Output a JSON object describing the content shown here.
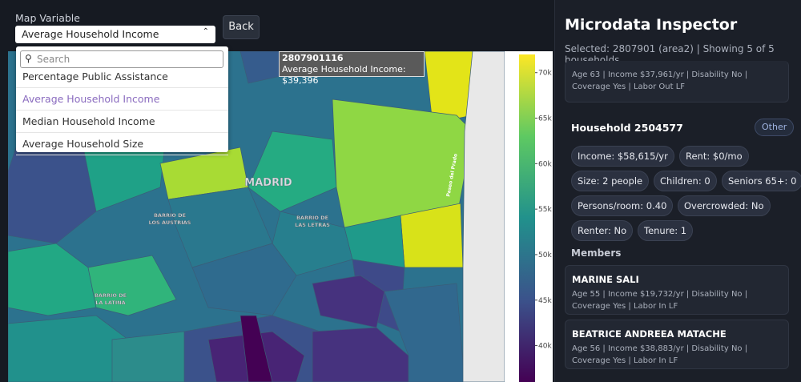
{
  "header": {
    "label": "Map Variable",
    "selected": "Average Household Income",
    "back": "Back"
  },
  "dropdown": {
    "search_placeholder": "Search",
    "options": [
      "Percentage Public Assistance",
      "Average Household Income",
      "Median Household Income",
      "Average Household Size"
    ]
  },
  "tooltip": {
    "id": "2807901116",
    "text": "Average Household Income: $39,396"
  },
  "map_labels": {
    "city": "MADRID",
    "austrias": [
      "BARRIO DE",
      "LOS AUSTRIAS"
    ],
    "letras": [
      "BARRIO DE",
      "LAS LETRAS"
    ],
    "latina": [
      "BARRIO DE",
      "LA LATINA"
    ],
    "street": "Paseo del Prado"
  },
  "colorbar": {
    "range": [
      36000,
      72000
    ],
    "ticks": [
      {
        "value": 70000,
        "label": "70k"
      },
      {
        "value": 65000,
        "label": "65k"
      },
      {
        "value": 60000,
        "label": "60k"
      },
      {
        "value": 55000,
        "label": "55k"
      },
      {
        "value": 50000,
        "label": "50k"
      },
      {
        "value": 45000,
        "label": "45k"
      },
      {
        "value": 40000,
        "label": "40k"
      }
    ]
  },
  "panel": {
    "title": "Microdata Inspector",
    "subtitle": "Selected: 2807901 (area2) | Showing 5 of 5 households",
    "prev_member": {
      "detail": "Age 63 | Income $37,961/yr | Disability No | Coverage Yes | Labor Out LF"
    },
    "household": {
      "title": "Household 2504577",
      "badge": "Other",
      "chips": [
        [
          "Income: $58,615/yr",
          "Rent: $0/mo"
        ],
        [
          "Size: 2 people",
          "Children: 0",
          "Seniors 65+: 0"
        ],
        [
          "Persons/room: 0.40",
          "Overcrowded: No"
        ],
        [
          "Renter: No",
          "Tenure: 1"
        ]
      ],
      "members_heading": "Members",
      "members": [
        {
          "name": "MARINE SALI",
          "detail": "Age 55 | Income $19,732/yr | Disability No | Coverage Yes | Labor In LF"
        },
        {
          "name": "BEATRICE ANDREEA MATACHE",
          "detail": "Age 56 | Income $38,883/yr | Disability No | Coverage Yes | Labor In LF"
        }
      ]
    }
  }
}
